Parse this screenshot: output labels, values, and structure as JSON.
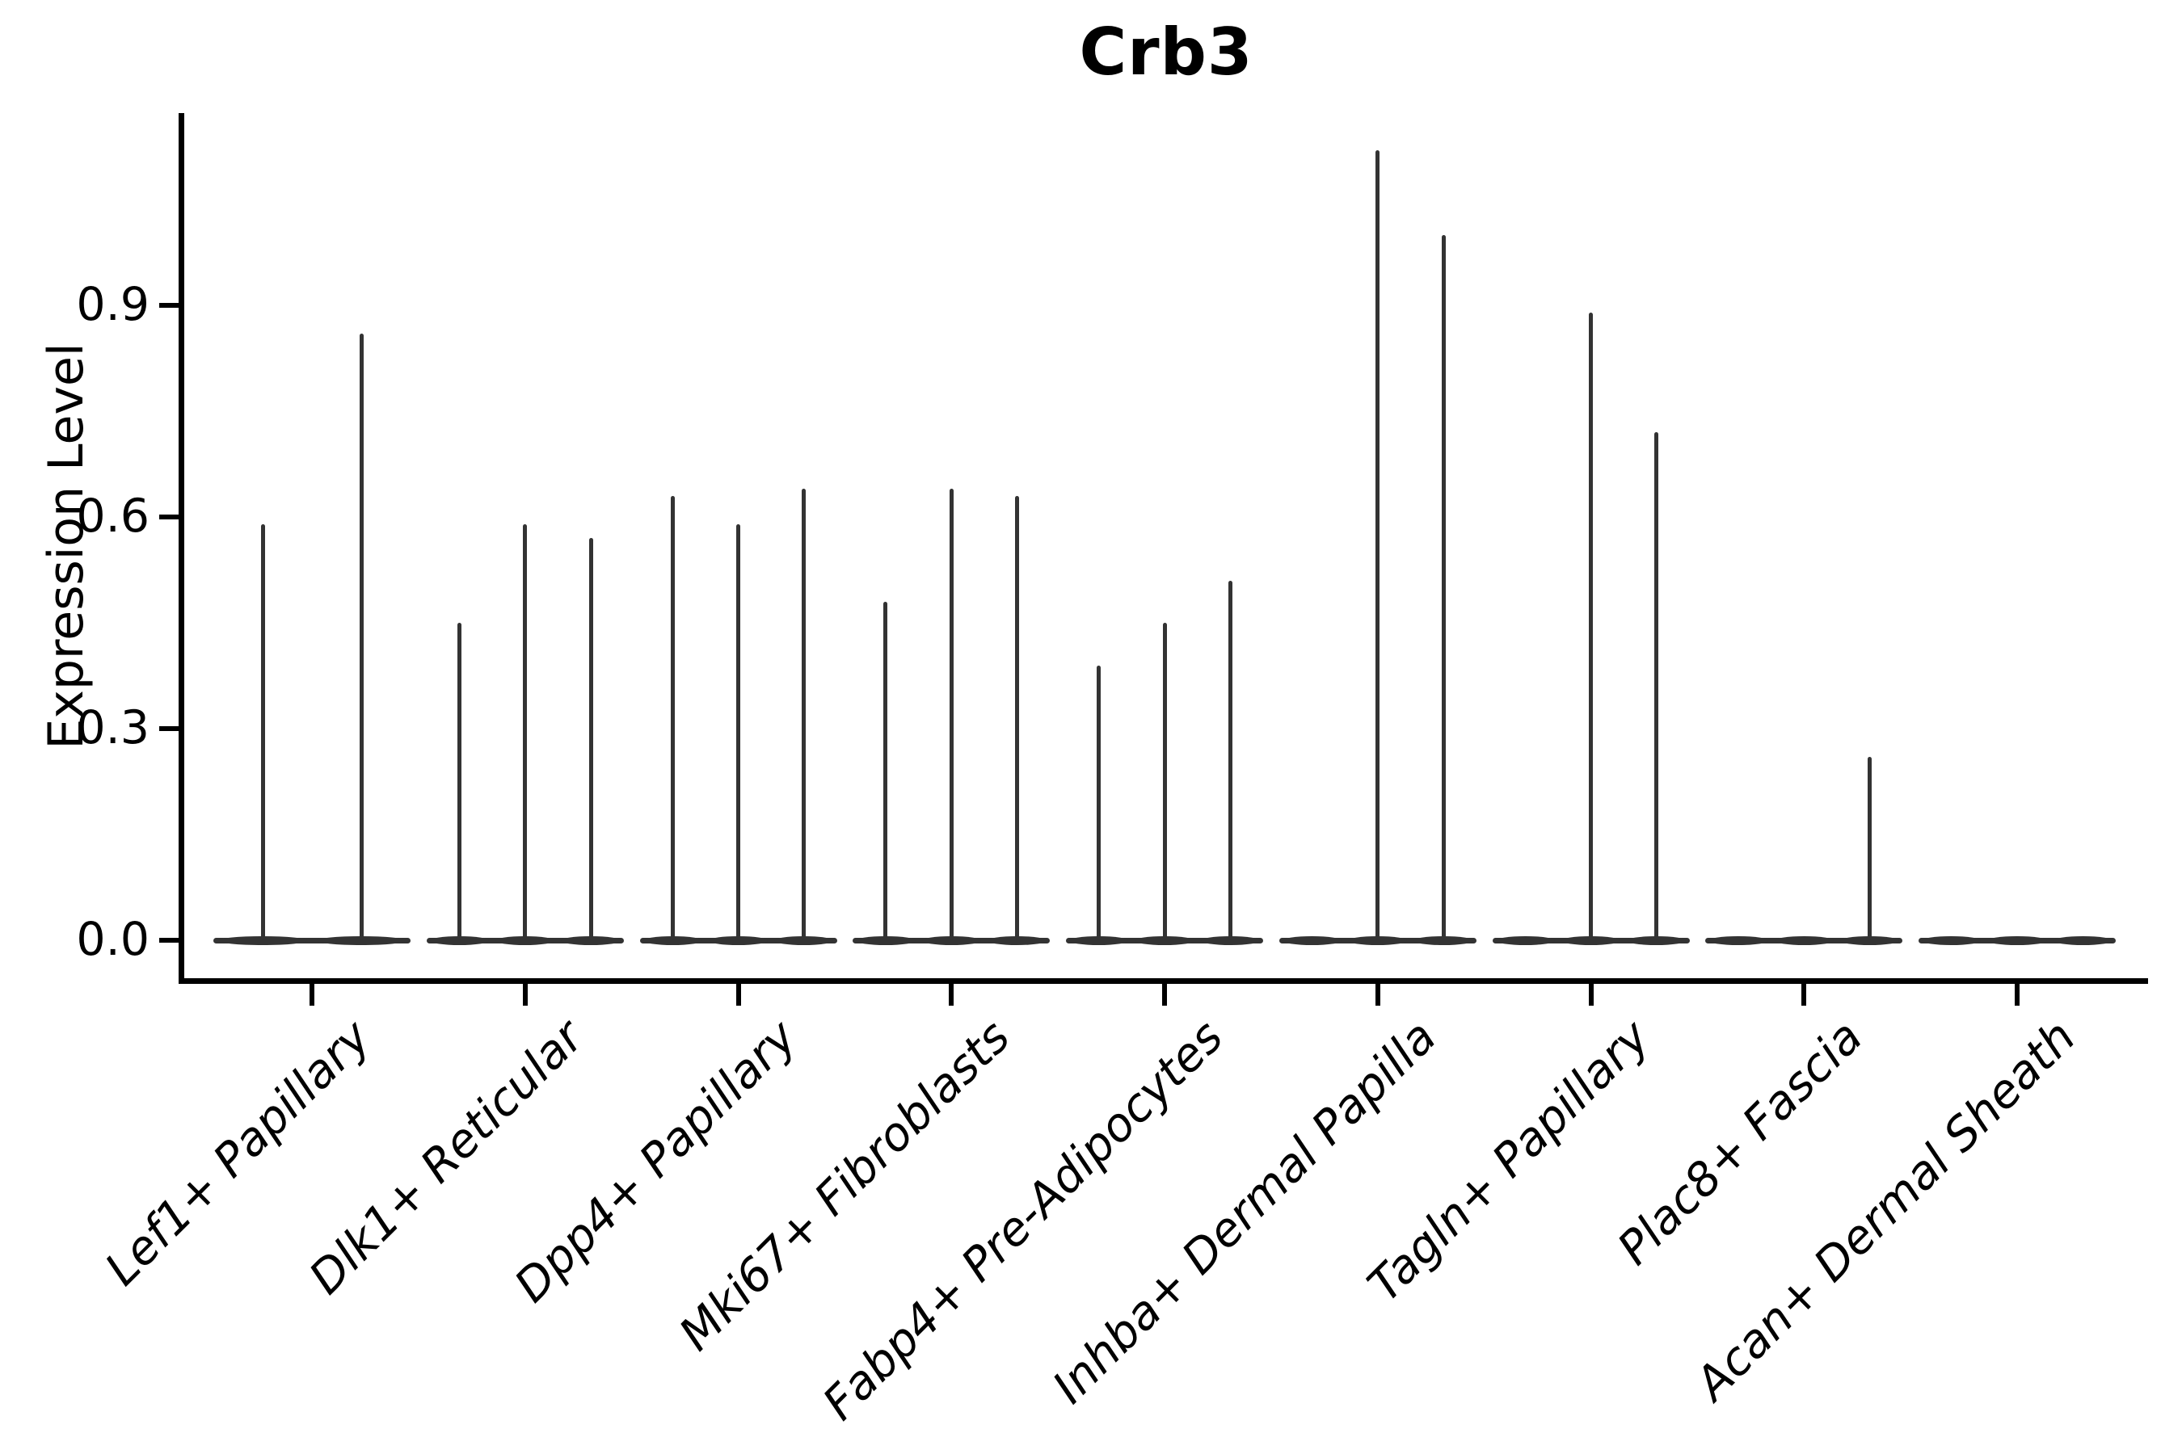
{
  "chart_data": {
    "type": "violin",
    "title": "Crb3",
    "xlabel": "",
    "ylabel": "Expression Level",
    "yticks": [
      "0.0",
      "0.3",
      "0.6",
      "0.9"
    ],
    "ytick_values": [
      0.0,
      0.3,
      0.6,
      0.9
    ],
    "ylim": [
      -0.055,
      1.17
    ],
    "grid": false,
    "legend": "none",
    "categories": [
      "Lef1+ Papillary",
      "Dlk1+ Reticular",
      "Dpp4+ Papillary",
      "Mki67+ Fibroblasts",
      "Fabp4+ Pre-Adipocytes",
      "Inhba+ Dermal Papilla",
      "Tagln+ Papillary",
      "Plac8+ Fascia",
      "Acan+ Dermal Sheath"
    ],
    "description": "Thin spike-like violins per category; each category shows 2-3 dodged violins whose bulk sits flat at expression 0 with a narrow spike up to the max expression value.",
    "groups": [
      {
        "category": "Lef1+ Papillary",
        "violin_max_values": [
          0.59,
          0.86
        ]
      },
      {
        "category": "Dlk1+ Reticular",
        "violin_max_values": [
          0.45,
          0.59,
          0.57
        ]
      },
      {
        "category": "Dpp4+ Papillary",
        "violin_max_values": [
          0.63,
          0.59,
          0.64
        ]
      },
      {
        "category": "Mki67+ Fibroblasts",
        "violin_max_values": [
          0.48,
          0.64,
          0.63
        ]
      },
      {
        "category": "Fabp4+ Pre-Adipocytes",
        "violin_max_values": [
          0.39,
          0.45,
          0.51
        ]
      },
      {
        "category": "Inhba+ Dermal Papilla",
        "violin_max_values": [
          0.0,
          1.12,
          1.0
        ]
      },
      {
        "category": "Tagln+ Papillary",
        "violin_max_values": [
          0.0,
          0.89,
          0.72
        ]
      },
      {
        "category": "Plac8+ Fascia",
        "violin_max_values": [
          0.0,
          0.0,
          0.26
        ]
      },
      {
        "category": "Acan+ Dermal Sheath",
        "violin_max_values": [
          0.0,
          0.0,
          0.0
        ]
      }
    ],
    "colors": {
      "violin_stroke": "#333333",
      "axis": "#000000",
      "text": "#000000",
      "background": "#ffffff"
    }
  }
}
